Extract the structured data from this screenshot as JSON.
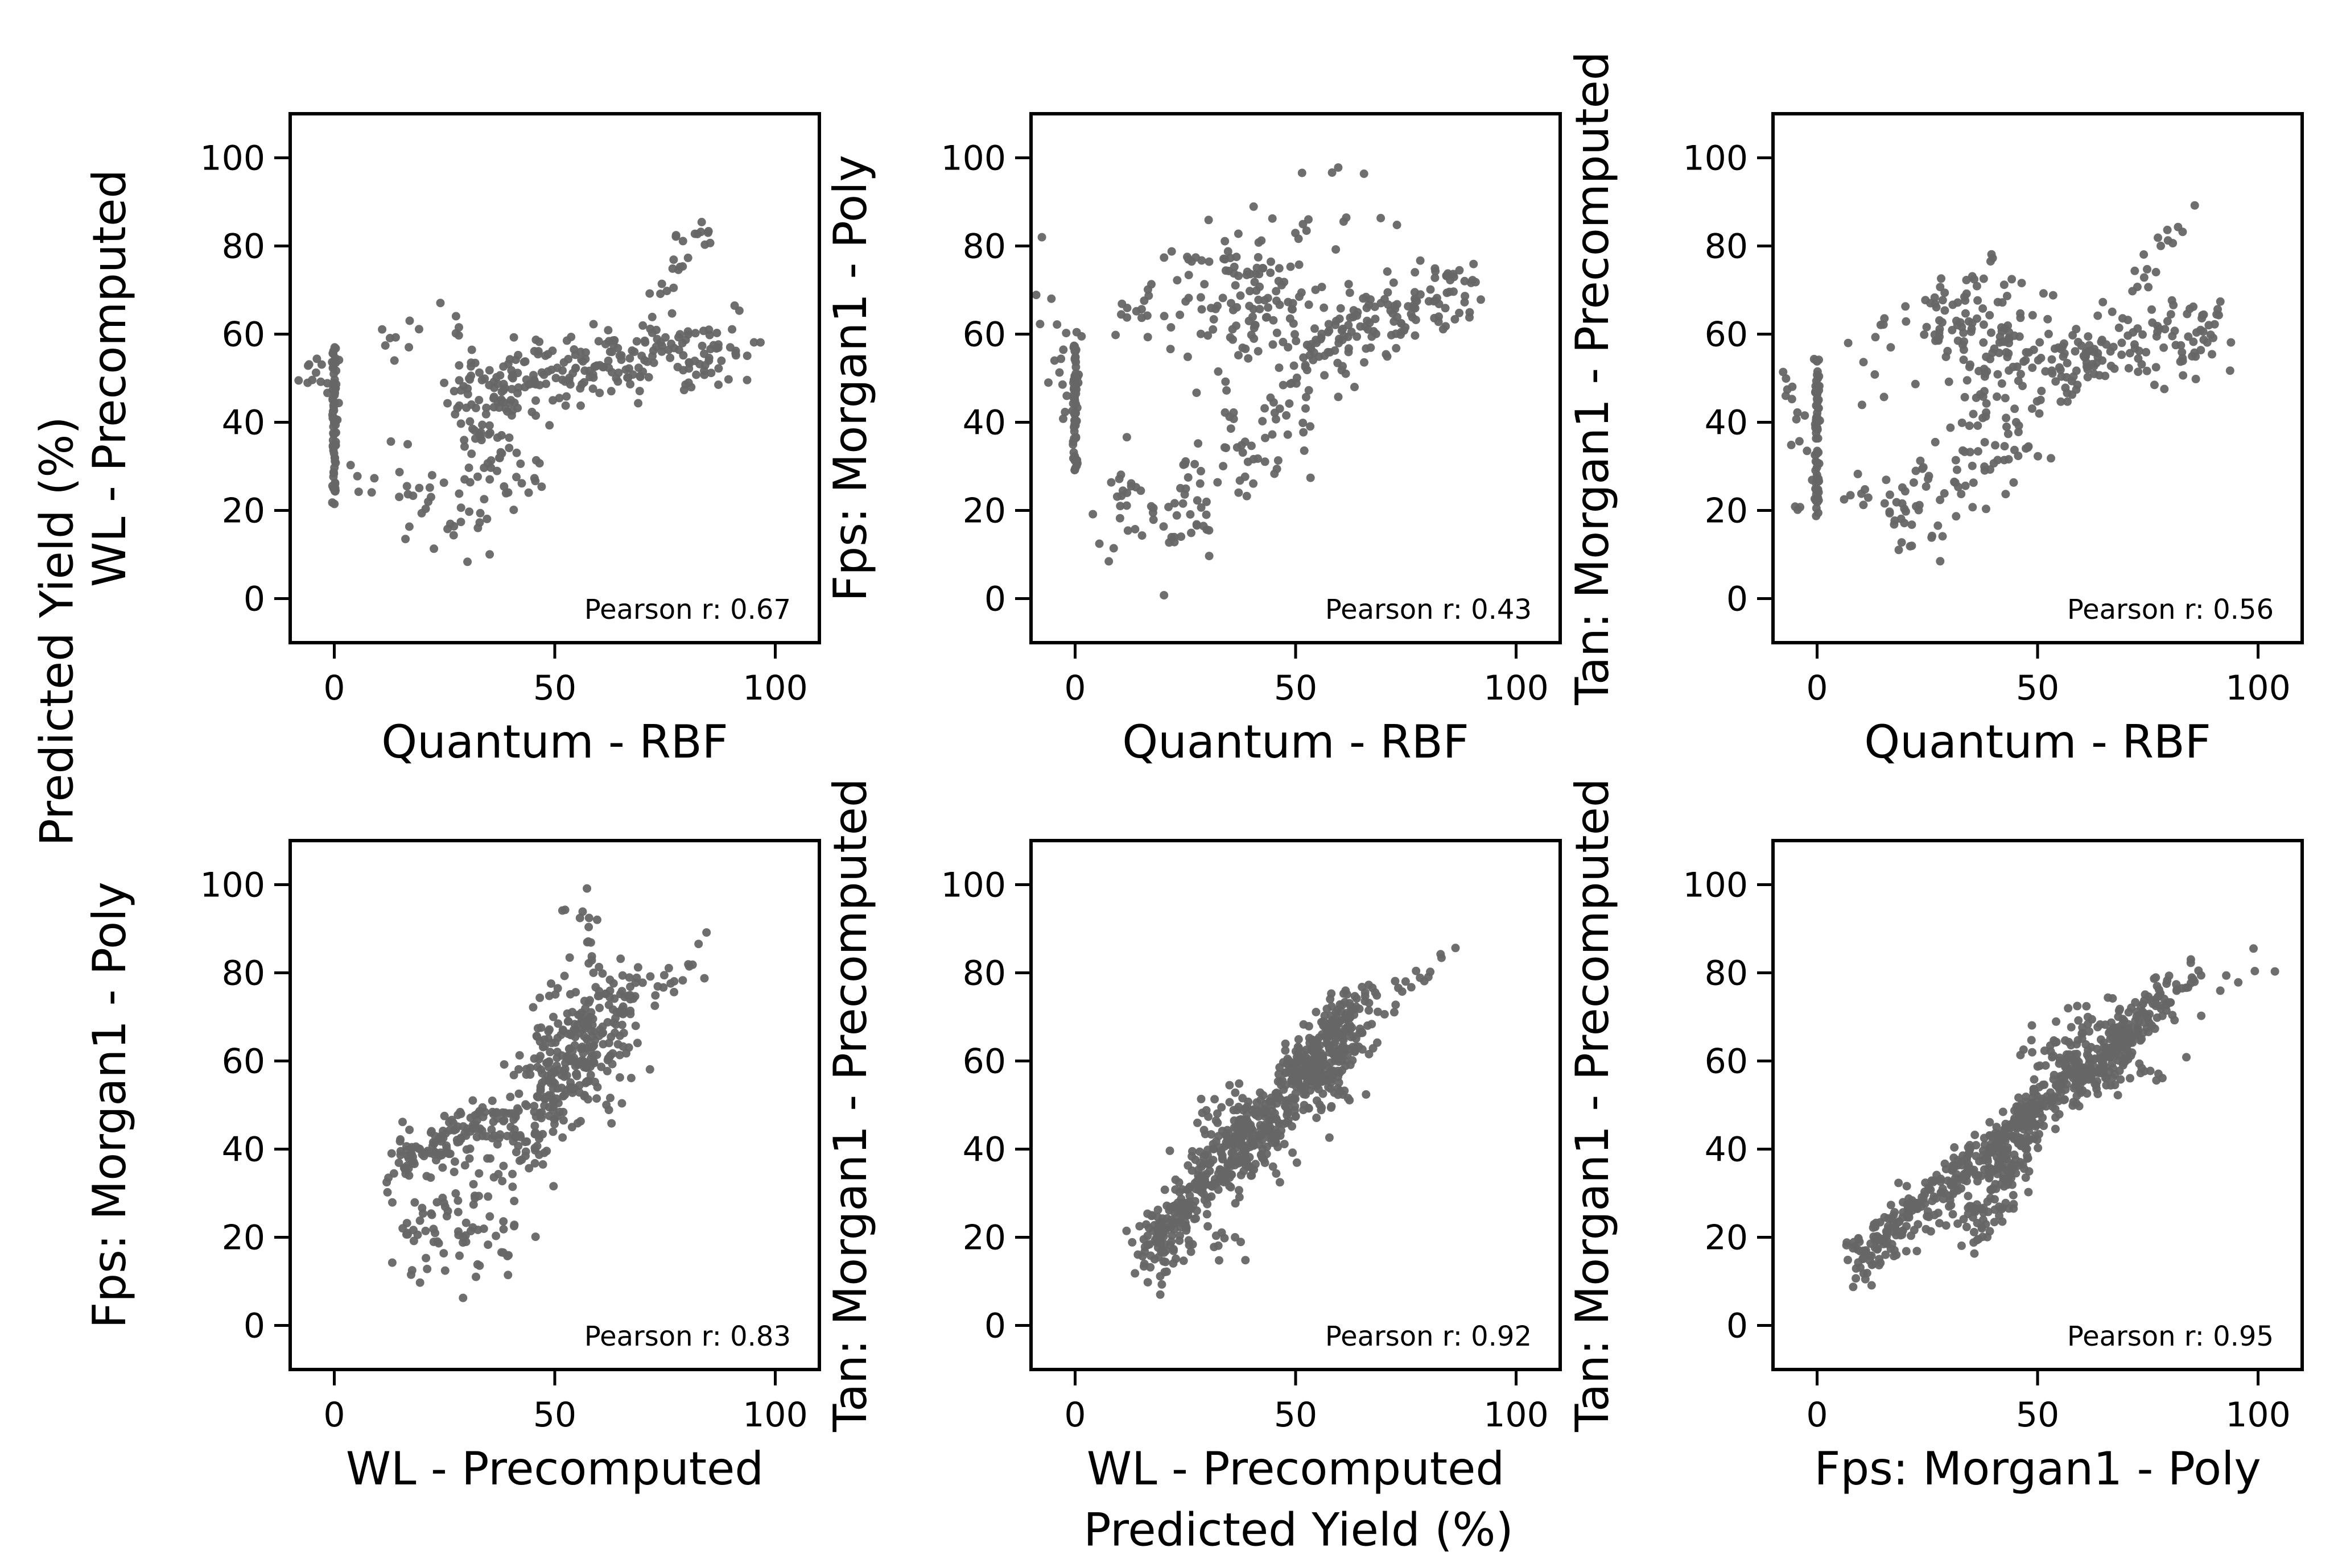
{
  "figure": {
    "suptitle_x": "Predicted Yield (%)",
    "suptitle_y": "Predicted Yield (%)",
    "point_color": "#666666"
  },
  "chart_data": [
    {
      "type": "scatter",
      "xlabel": "Quantum - RBF",
      "ylabel": "WL - Precomputed",
      "xlim": [
        -10,
        110
      ],
      "ylim": [
        -10,
        110
      ],
      "xticks": [
        0,
        50,
        100
      ],
      "yticks": [
        0,
        20,
        40,
        60,
        80,
        100
      ],
      "annotation": "Pearson r: 0.67",
      "pearson_r": 0.67,
      "clusters": [
        {
          "kind": "vertical",
          "x": 0,
          "ymin": 21,
          "ymax": 57,
          "n": 70
        },
        {
          "kind": "blob",
          "cx": -3,
          "cy": 52,
          "sx": 3,
          "sy": 4,
          "n": 14
        },
        {
          "kind": "linear",
          "x0": 5,
          "x1": 35,
          "y0": 28,
          "y1": 16,
          "noise": 4,
          "n": 30
        },
        {
          "kind": "linear",
          "x0": 12,
          "x1": 30,
          "y0": 58,
          "y1": 62,
          "noise": 4,
          "n": 14
        },
        {
          "kind": "linear",
          "x0": 20,
          "x1": 45,
          "y0": 20,
          "y1": 52,
          "noise": 6,
          "n": 40
        },
        {
          "kind": "blob",
          "cx": 38,
          "cy": 30,
          "sx": 6,
          "sy": 4,
          "n": 30
        },
        {
          "kind": "linear",
          "x0": 28,
          "x1": 92,
          "y0": 47,
          "y1": 58,
          "noise": 4.5,
          "n": 240
        },
        {
          "kind": "linear",
          "x0": 72,
          "x1": 86,
          "y0": 68,
          "y1": 86,
          "noise": 2.5,
          "n": 22
        }
      ]
    },
    {
      "type": "scatter",
      "xlabel": "Quantum - RBF",
      "ylabel": "Fps: Morgan1 - Poly",
      "xlim": [
        -10,
        110
      ],
      "ylim": [
        -10,
        110
      ],
      "xticks": [
        0,
        50,
        100
      ],
      "yticks": [
        0,
        20,
        40,
        60,
        80,
        100
      ],
      "annotation": "Pearson r: 0.43",
      "pearson_r": 0.43,
      "clusters": [
        {
          "kind": "vertical",
          "x": 0,
          "ymin": 29,
          "ymax": 58,
          "n": 70
        },
        {
          "kind": "blob",
          "cx": -3,
          "cy": 55,
          "sx": 3,
          "sy": 9,
          "n": 18
        },
        {
          "kind": "linear",
          "x0": 5,
          "x1": 30,
          "y0": 24,
          "y1": 18,
          "noise": 5,
          "n": 50
        },
        {
          "kind": "linear",
          "x0": 10,
          "x1": 35,
          "y0": 60,
          "y1": 78,
          "noise": 4,
          "n": 30
        },
        {
          "kind": "linear",
          "x0": 25,
          "x1": 55,
          "y0": 25,
          "y1": 45,
          "noise": 6,
          "n": 60
        },
        {
          "kind": "blob",
          "cx": 40,
          "cy": 66,
          "sx": 9,
          "sy": 9,
          "n": 110
        },
        {
          "kind": "linear",
          "x0": 50,
          "x1": 90,
          "y0": 56,
          "y1": 72,
          "noise": 4.5,
          "n": 150
        },
        {
          "kind": "blob",
          "cx": 60,
          "cy": 90,
          "sx": 8,
          "sy": 6,
          "n": 12
        }
      ]
    },
    {
      "type": "scatter",
      "xlabel": "Quantum - RBF",
      "ylabel": "Tan: Morgan1 - Precomputed",
      "xlim": [
        -10,
        110
      ],
      "ylim": [
        -10,
        110
      ],
      "xticks": [
        0,
        50,
        100
      ],
      "yticks": [
        0,
        20,
        40,
        60,
        80,
        100
      ],
      "annotation": "Pearson r: 0.56",
      "pearson_r": 0.56,
      "clusters": [
        {
          "kind": "vertical",
          "x": 0,
          "ymin": 18,
          "ymax": 55,
          "n": 70
        },
        {
          "kind": "blob",
          "cx": -3,
          "cy": 40,
          "sx": 3,
          "sy": 12,
          "n": 18
        },
        {
          "kind": "linear",
          "x0": 8,
          "x1": 25,
          "y0": 25,
          "y1": 17,
          "noise": 4,
          "n": 30
        },
        {
          "kind": "linear",
          "x0": 10,
          "x1": 35,
          "y0": 55,
          "y1": 68,
          "noise": 5,
          "n": 30
        },
        {
          "kind": "linear",
          "x0": 22,
          "x1": 55,
          "y0": 22,
          "y1": 45,
          "noise": 6,
          "n": 70
        },
        {
          "kind": "blob",
          "cx": 38,
          "cy": 58,
          "sx": 8,
          "sy": 8,
          "n": 110
        },
        {
          "kind": "linear",
          "x0": 50,
          "x1": 92,
          "y0": 52,
          "y1": 62,
          "noise": 4.5,
          "n": 140
        },
        {
          "kind": "linear",
          "x0": 72,
          "x1": 85,
          "y0": 72,
          "y1": 86,
          "noise": 2.5,
          "n": 16
        }
      ]
    },
    {
      "type": "scatter",
      "xlabel": "WL - Precomputed",
      "ylabel": "Fps: Morgan1 - Poly",
      "xlim": [
        -10,
        110
      ],
      "ylim": [
        -10,
        110
      ],
      "xticks": [
        0,
        50,
        100
      ],
      "yticks": [
        0,
        20,
        40,
        60,
        80,
        100
      ],
      "annotation": "Pearson r: 0.83",
      "pearson_r": 0.83,
      "clusters": [
        {
          "kind": "linear",
          "x0": 15,
          "x1": 40,
          "y0": 38,
          "y1": 48,
          "noise": 3,
          "n": 120
        },
        {
          "kind": "blob",
          "cx": 28,
          "cy": 25,
          "sx": 8,
          "sy": 8,
          "n": 80
        },
        {
          "kind": "linear",
          "x0": 40,
          "x1": 65,
          "y0": 40,
          "y1": 72,
          "noise": 6,
          "n": 220
        },
        {
          "kind": "blob",
          "cx": 56,
          "cy": 64,
          "sx": 6,
          "sy": 7,
          "n": 120
        },
        {
          "kind": "linear",
          "x0": 62,
          "x1": 87,
          "y0": 70,
          "y1": 85,
          "noise": 3,
          "n": 25
        },
        {
          "kind": "blob",
          "cx": 58,
          "cy": 92,
          "sx": 4,
          "sy": 6,
          "n": 14
        },
        {
          "kind": "linear",
          "x0": 15,
          "x1": 22,
          "y0": 20,
          "y1": 15,
          "noise": 3,
          "n": 10
        }
      ]
    },
    {
      "type": "scatter",
      "xlabel": "WL - Precomputed",
      "ylabel": "Tan: Morgan1 - Precomputed",
      "xlim": [
        -10,
        110
      ],
      "ylim": [
        -10,
        110
      ],
      "xticks": [
        0,
        50,
        100
      ],
      "yticks": [
        0,
        20,
        40,
        60,
        80,
        100
      ],
      "annotation": "Pearson r: 0.92",
      "pearson_r": 0.92,
      "clusters": [
        {
          "kind": "linear",
          "x0": 15,
          "x1": 65,
          "y0": 15,
          "y1": 72,
          "noise": 4,
          "n": 520
        },
        {
          "kind": "blob",
          "cx": 38,
          "cy": 42,
          "sx": 5,
          "sy": 6,
          "n": 120
        },
        {
          "kind": "blob",
          "cx": 56,
          "cy": 58,
          "sx": 5,
          "sy": 5,
          "n": 120
        },
        {
          "kind": "linear",
          "x0": 65,
          "x1": 87,
          "y0": 70,
          "y1": 86,
          "noise": 1.5,
          "n": 22
        },
        {
          "kind": "blob",
          "cx": 35,
          "cy": 17,
          "sx": 3,
          "sy": 2,
          "n": 10
        }
      ]
    },
    {
      "type": "scatter",
      "xlabel": "Fps: Morgan1 - Poly",
      "ylabel": "Tan: Morgan1 - Precomputed",
      "xlim": [
        -10,
        110
      ],
      "ylim": [
        -10,
        110
      ],
      "xticks": [
        0,
        50,
        100
      ],
      "yticks": [
        0,
        20,
        40,
        60,
        80,
        100
      ],
      "annotation": "Pearson r: 0.95",
      "pearson_r": 0.95,
      "clusters": [
        {
          "kind": "linear",
          "x0": 8,
          "x1": 80,
          "y0": 14,
          "y1": 74,
          "noise": 3,
          "n": 560
        },
        {
          "kind": "linear",
          "x0": 35,
          "x1": 50,
          "y0": 22,
          "y1": 48,
          "noise": 4,
          "n": 140
        },
        {
          "kind": "blob",
          "cx": 62,
          "cy": 62,
          "sx": 8,
          "sy": 5,
          "n": 120
        },
        {
          "kind": "linear",
          "x0": 75,
          "x1": 105,
          "y0": 76,
          "y1": 82,
          "noise": 3,
          "n": 25
        }
      ]
    }
  ]
}
